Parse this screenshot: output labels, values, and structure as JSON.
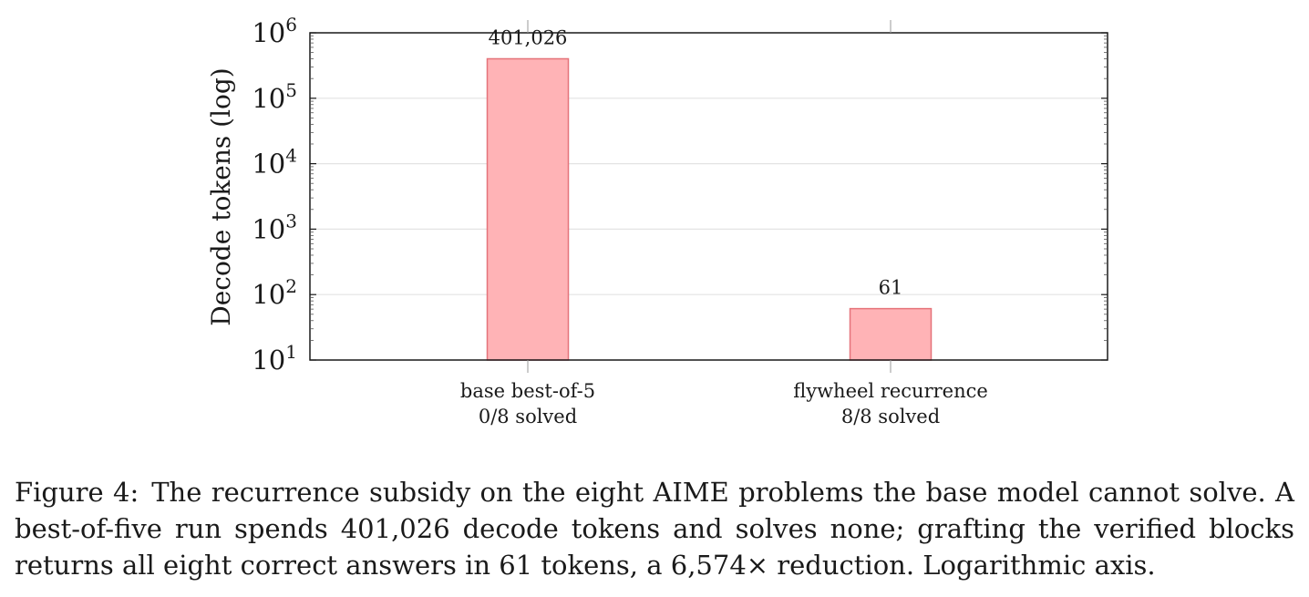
{
  "chart_data": {
    "type": "bar",
    "title": "",
    "xlabel": "",
    "ylabel": "Decode tokens (log)",
    "yscale": "log",
    "ylim": [
      10,
      1000000
    ],
    "ytick_exponents": [
      "1",
      "2",
      "3",
      "4",
      "5",
      "6"
    ],
    "ytick_base": "10",
    "grid": true,
    "bar_color": "#ffb3b6",
    "bar_edge_color": "#e5737a",
    "categories": [
      {
        "line1": "base best-of-5",
        "line2": "0/8 solved"
      },
      {
        "line1": "flywheel recurrence",
        "line2": "8/8 solved"
      }
    ],
    "values": [
      401026,
      61
    ],
    "data_labels": [
      "401,026",
      "61"
    ]
  },
  "caption": {
    "label": "Figure 4:",
    "text": "The recurrence subsidy on the eight AIME problems the base model cannot solve. A best-of-five run spends 401,026 decode tokens and solves none; grafting the verified blocks returns all eight correct answers in 61 tokens, a 6,574× reduction. Logarithmic axis."
  }
}
